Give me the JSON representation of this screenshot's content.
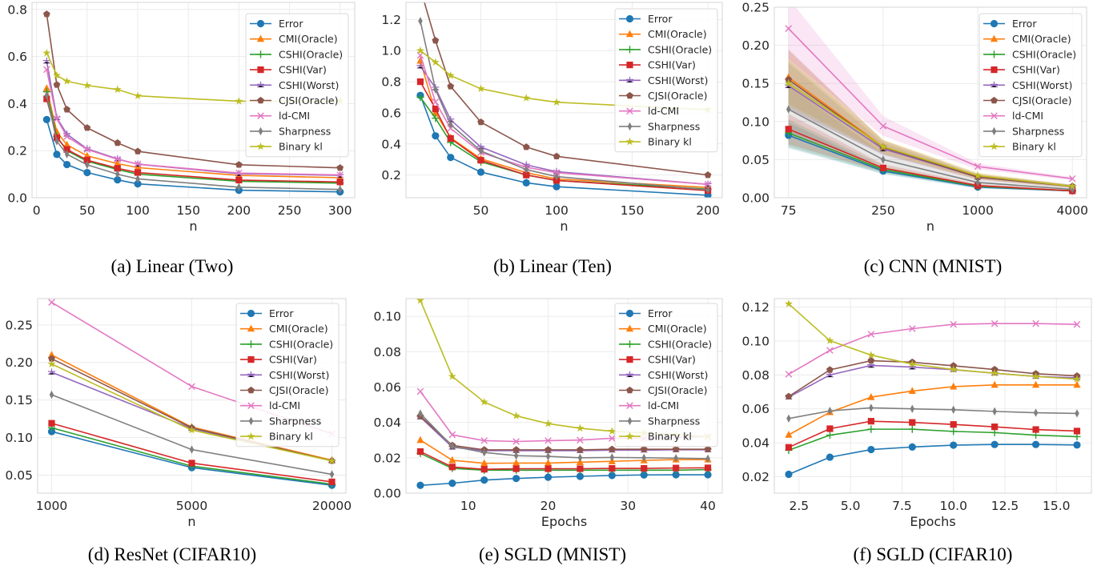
{
  "series_styles": {
    "Error": {
      "color": "#1f77b4",
      "marker": "circle"
    },
    "CMI(Oracle)": {
      "color": "#ff7f0e",
      "marker": "triangle"
    },
    "CSHI(Oracle)": {
      "color": "#2ca02c",
      "marker": "plus"
    },
    "CSHI(Var)": {
      "color": "#d62728",
      "marker": "square"
    },
    "CSHI(Worst)": {
      "color": "#9467bd",
      "marker": "thin-star"
    },
    "CJSI(Oracle)": {
      "color": "#8c564b",
      "marker": "pentagon"
    },
    "ld-CMI": {
      "color": "#e377c2",
      "marker": "x"
    },
    "Sharpness": {
      "color": "#7f7f7f",
      "marker": "thin-diamond"
    },
    "Binary kl": {
      "color": "#bcbd22",
      "marker": "star"
    }
  },
  "chart_data": [
    {
      "type": "line",
      "caption": "(a) Linear (Two)",
      "xlabel": "n",
      "ylabel": "",
      "x": [
        10,
        20,
        30,
        50,
        80,
        100,
        200,
        300
      ],
      "xlim": [
        -4.5,
        314.5
      ],
      "ylim": [
        0,
        0.83
      ],
      "xticks": [
        "0",
        "50",
        "100",
        "150",
        "200",
        "250",
        "300"
      ],
      "yticks": [
        "0.0",
        "0.2",
        "0.4",
        "0.6",
        "0.8"
      ],
      "grid": true,
      "legend": "upper right",
      "series": [
        {
          "name": "Error",
          "values": [
            0.332,
            0.184,
            0.141,
            0.107,
            0.076,
            0.059,
            0.032,
            0.025
          ]
        },
        {
          "name": "CMI(Oracle)",
          "values": [
            0.465,
            0.28,
            0.225,
            0.178,
            0.145,
            0.128,
            0.095,
            0.085
          ]
        },
        {
          "name": "CSHI(Oracle)",
          "values": [
            0.45,
            0.26,
            0.2,
            0.155,
            0.12,
            0.1,
            0.07,
            0.062
          ]
        },
        {
          "name": "CSHI(Var)",
          "values": [
            0.42,
            0.255,
            0.205,
            0.16,
            0.125,
            0.107,
            0.075,
            0.067
          ]
        },
        {
          "name": "CSHI(Worst)",
          "values": [
            0.58,
            0.34,
            0.27,
            0.208,
            0.165,
            0.142,
            0.102,
            0.095
          ]
        },
        {
          "name": "CJSI(Oracle)",
          "values": [
            0.78,
            0.48,
            0.375,
            0.297,
            0.233,
            0.197,
            0.14,
            0.127
          ]
        },
        {
          "name": "ld-CMI",
          "values": [
            0.545,
            0.335,
            0.26,
            0.205,
            0.163,
            0.143,
            0.105,
            0.097
          ]
        },
        {
          "name": "Sharpness",
          "values": [
            0.435,
            0.24,
            0.185,
            0.14,
            0.1,
            0.08,
            0.045,
            0.035
          ]
        },
        {
          "name": "Binary kl",
          "values": [
            0.615,
            0.52,
            0.495,
            0.477,
            0.46,
            0.433,
            0.41,
            0.41
          ]
        }
      ]
    },
    {
      "type": "line",
      "caption": "(b) Linear (Ten)",
      "xlabel": "n",
      "ylabel": "",
      "x": [
        10,
        20,
        30,
        50,
        80,
        100,
        200
      ],
      "xlim": [
        0.5,
        209.5
      ],
      "ylim": [
        0.054,
        1.31
      ],
      "xticks": [
        "50",
        "100",
        "150",
        "200"
      ],
      "yticks": [
        "0.2",
        "0.4",
        "0.6",
        "0.8",
        "1.0",
        "1.2"
      ],
      "grid": true,
      "legend": "upper right",
      "series": [
        {
          "name": "Error",
          "values": [
            0.712,
            0.452,
            0.313,
            0.219,
            0.15,
            0.125,
            0.07
          ]
        },
        {
          "name": "CMI(Oracle)",
          "values": [
            0.935,
            0.6,
            0.44,
            0.305,
            0.215,
            0.175,
            0.12
          ]
        },
        {
          "name": "CSHI(Oracle)",
          "values": [
            0.7,
            0.565,
            0.41,
            0.285,
            0.2,
            0.165,
            0.11
          ]
        },
        {
          "name": "CSHI(Var)",
          "values": [
            0.8,
            0.625,
            0.435,
            0.295,
            0.2,
            0.165,
            0.1
          ]
        },
        {
          "name": "CSHI(Worst)",
          "values": [
            0.9,
            0.76,
            0.555,
            0.38,
            0.265,
            0.222,
            0.14
          ]
        },
        {
          "name": "CJSI(Oracle)",
          "values": [
            1.4,
            1.065,
            0.77,
            0.54,
            0.38,
            0.32,
            0.2
          ]
        },
        {
          "name": "ld-CMI",
          "values": [
            0.97,
            0.67,
            0.5,
            0.345,
            0.25,
            0.215,
            0.14
          ]
        },
        {
          "name": "Sharpness",
          "values": [
            1.19,
            0.75,
            0.525,
            0.355,
            0.235,
            0.19,
            0.105
          ]
        },
        {
          "name": "Binary kl",
          "values": [
            1.0,
            0.925,
            0.84,
            0.755,
            0.695,
            0.668,
            0.62
          ]
        }
      ]
    },
    {
      "type": "line",
      "caption": "(c) CNN (MNIST)",
      "xlabel": "n",
      "ylabel": "",
      "categories": [
        "75",
        "250",
        "1000",
        "4000"
      ],
      "xlim": [
        -0.15,
        3.15
      ],
      "ylim": [
        0,
        0.25
      ],
      "xticks": [
        "75",
        "250",
        "1000",
        "4000"
      ],
      "yticks": [
        "0.00",
        "0.05",
        "0.10",
        "0.15",
        "0.20",
        "0.25"
      ],
      "grid": true,
      "legend": "upper right",
      "shaded_bands": true,
      "series": [
        {
          "name": "Error",
          "values": [
            0.082,
            0.035,
            0.014,
            0.009
          ],
          "std": [
            0.017,
            0.004,
            0.002,
            0.001
          ]
        },
        {
          "name": "CMI(Oracle)",
          "values": [
            0.158,
            0.067,
            0.028,
            0.015
          ],
          "std": [
            0.035,
            0.009,
            0.004,
            0.002
          ]
        },
        {
          "name": "CSHI(Oracle)",
          "values": [
            0.085,
            0.037,
            0.015,
            0.009
          ],
          "std": [
            0.018,
            0.005,
            0.002,
            0.001
          ]
        },
        {
          "name": "CSHI(Var)",
          "values": [
            0.09,
            0.039,
            0.016,
            0.009
          ],
          "std": [
            0.02,
            0.005,
            0.002,
            0.001
          ]
        },
        {
          "name": "CSHI(Worst)",
          "values": [
            0.147,
            0.064,
            0.027,
            0.015
          ],
          "std": [
            0.03,
            0.008,
            0.003,
            0.002
          ]
        },
        {
          "name": "CJSI(Oracle)",
          "values": [
            0.155,
            0.066,
            0.027,
            0.015
          ],
          "std": [
            0.04,
            0.009,
            0.004,
            0.002
          ]
        },
        {
          "name": "ld-CMI",
          "values": [
            0.222,
            0.094,
            0.041,
            0.025
          ],
          "std": [
            0.04,
            0.013,
            0.004,
            0.002
          ]
        },
        {
          "name": "Sharpness",
          "values": [
            0.116,
            0.05,
            0.02,
            0.011
          ],
          "std": [
            0.03,
            0.008,
            0.003,
            0.002
          ]
        },
        {
          "name": "Binary kl",
          "values": [
            0.15,
            0.067,
            0.029,
            0.015
          ],
          "std": [
            0.03,
            0.009,
            0.004,
            0.002
          ]
        }
      ]
    },
    {
      "type": "line",
      "caption": "(d) ResNet (CIFAR10)",
      "xlabel": "n",
      "ylabel": "",
      "categories": [
        "1000",
        "5000",
        "20000"
      ],
      "xlim": [
        -0.1,
        2.1
      ],
      "ylim": [
        0.026,
        0.285
      ],
      "xticks": [
        "1000",
        "5000",
        "20000"
      ],
      "yticks": [
        "0.05",
        "0.10",
        "0.15",
        "0.20",
        "0.25"
      ],
      "grid": true,
      "legend": "upper right",
      "series": [
        {
          "name": "Error",
          "values": [
            0.108,
            0.06,
            0.0365
          ]
        },
        {
          "name": "CMI(Oracle)",
          "values": [
            0.21,
            0.114,
            0.07
          ]
        },
        {
          "name": "CSHI(Oracle)",
          "values": [
            0.113,
            0.062,
            0.038
          ]
        },
        {
          "name": "CSHI(Var)",
          "values": [
            0.119,
            0.066,
            0.041
          ]
        },
        {
          "name": "CSHI(Worst)",
          "values": [
            0.187,
            0.112,
            0.069
          ]
        },
        {
          "name": "CJSI(Oracle)",
          "values": [
            0.205,
            0.113,
            0.069
          ]
        },
        {
          "name": "ld-CMI",
          "values": [
            0.28,
            0.168,
            0.105
          ]
        },
        {
          "name": "Sharpness",
          "values": [
            0.157,
            0.084,
            0.051
          ]
        },
        {
          "name": "Binary kl",
          "values": [
            0.198,
            0.11,
            0.069
          ]
        }
      ]
    },
    {
      "type": "line",
      "caption": "(e) SGLD (MNIST)",
      "xlabel": "Epochs",
      "ylabel": "",
      "x": [
        4,
        8,
        12,
        16,
        20,
        24,
        28,
        32,
        36,
        40
      ],
      "xlim": [
        2.2,
        41.8
      ],
      "ylim": [
        0,
        0.11
      ],
      "xticks": [
        "10",
        "20",
        "30",
        "40"
      ],
      "yticks": [
        "0.00",
        "0.02",
        "0.04",
        "0.06",
        "0.08",
        "0.10"
      ],
      "grid": true,
      "legend": "upper right",
      "series": [
        {
          "name": "Error",
          "values": [
            0.0044,
            0.0056,
            0.0074,
            0.0083,
            0.009,
            0.0095,
            0.01,
            0.0103,
            0.0104,
            0.0104
          ]
        },
        {
          "name": "CMI(Oracle)",
          "values": [
            0.03,
            0.0186,
            0.0169,
            0.017,
            0.017,
            0.0175,
            0.018,
            0.0185,
            0.019,
            0.019
          ]
        },
        {
          "name": "CSHI(Oracle)",
          "values": [
            0.0225,
            0.014,
            0.013,
            0.013,
            0.013,
            0.013,
            0.013,
            0.013,
            0.013,
            0.0133
          ]
        },
        {
          "name": "CSHI(Var)",
          "values": [
            0.0235,
            0.0148,
            0.0135,
            0.0138,
            0.0138,
            0.0138,
            0.014,
            0.014,
            0.0142,
            0.0143
          ]
        },
        {
          "name": "CSHI(Worst)",
          "values": [
            0.043,
            0.026,
            0.024,
            0.024,
            0.024,
            0.024,
            0.0243,
            0.0243,
            0.0245,
            0.0245
          ]
        },
        {
          "name": "CJSI(Oracle)",
          "values": [
            0.0435,
            0.027,
            0.0245,
            0.0245,
            0.0245,
            0.0245,
            0.0248,
            0.0248,
            0.0248,
            0.0248
          ]
        },
        {
          "name": "ld-CMI",
          "values": [
            0.0575,
            0.033,
            0.0297,
            0.0292,
            0.0297,
            0.03,
            0.031,
            0.031,
            0.0315,
            0.032
          ]
        },
        {
          "name": "Sharpness",
          "values": [
            0.045,
            0.0265,
            0.023,
            0.0212,
            0.0208,
            0.02,
            0.0202,
            0.02,
            0.0198,
            0.0195
          ]
        },
        {
          "name": "Binary kl",
          "values": [
            0.109,
            0.066,
            0.0515,
            0.0437,
            0.0393,
            0.0367,
            0.035,
            0.034,
            0.033,
            0.032
          ]
        }
      ]
    },
    {
      "type": "line",
      "caption": "(f) SGLD (CIFAR10)",
      "xlabel": "Epochs",
      "ylabel": "",
      "x": [
        2,
        4,
        6,
        8,
        10,
        12,
        14,
        16
      ],
      "xlim": [
        1.3,
        16.7
      ],
      "ylim": [
        0.0103,
        0.125
      ],
      "xticks": [
        "2.5",
        "5.0",
        "7.5",
        "10.0",
        "12.5",
        "15.0"
      ],
      "yticks": [
        "0.02",
        "0.04",
        "0.06",
        "0.08",
        "0.10",
        "0.12"
      ],
      "grid": true,
      "legend": "none",
      "series": [
        {
          "name": "Error",
          "values": [
            0.0214,
            0.0315,
            0.036,
            0.0375,
            0.0386,
            0.039,
            0.039,
            0.0387
          ]
        },
        {
          "name": "CMI(Oracle)",
          "values": [
            0.0447,
            0.058,
            0.0669,
            0.0705,
            0.0731,
            0.0741,
            0.0741,
            0.0741
          ]
        },
        {
          "name": "CSHI(Oracle)",
          "values": [
            0.0356,
            0.0445,
            0.048,
            0.048,
            0.0467,
            0.046,
            0.0445,
            0.0436
          ]
        },
        {
          "name": "CSHI(Var)",
          "values": [
            0.0373,
            0.0483,
            0.0527,
            0.052,
            0.0508,
            0.0494,
            0.0478,
            0.0469
          ]
        },
        {
          "name": "CSHI(Worst)",
          "values": [
            0.0669,
            0.08,
            0.0856,
            0.0846,
            0.0831,
            0.081,
            0.0791,
            0.0783
          ]
        },
        {
          "name": "CJSI(Oracle)",
          "values": [
            0.0673,
            0.083,
            0.0884,
            0.0875,
            0.0854,
            0.0832,
            0.0807,
            0.0794
          ]
        },
        {
          "name": "ld-CMI",
          "values": [
            0.0804,
            0.0945,
            0.104,
            0.1073,
            0.1098,
            0.1103,
            0.1103,
            0.1098
          ]
        },
        {
          "name": "Sharpness",
          "values": [
            0.0543,
            0.0588,
            0.0606,
            0.06,
            0.0595,
            0.0585,
            0.0577,
            0.0573
          ]
        },
        {
          "name": "Binary kl",
          "values": [
            0.1219,
            0.1002,
            0.0917,
            0.0864,
            0.0832,
            0.081,
            0.0791,
            0.0775
          ]
        }
      ]
    }
  ]
}
